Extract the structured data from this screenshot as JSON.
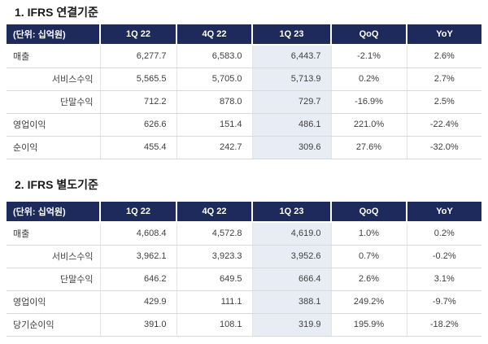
{
  "tables": [
    {
      "title": "1. IFRS 연결기준",
      "headers": [
        "(단위: 십억원)",
        "1Q 22",
        "4Q 22",
        "1Q 23",
        "QoQ",
        "YoY"
      ],
      "rows": [
        {
          "label": "매출",
          "values": [
            "6,277.7",
            "6,583.0",
            "6,443.7",
            "-2.1%",
            "2.6%"
          ]
        },
        {
          "label": "서비스수익",
          "values": [
            "5,565.5",
            "5,705.0",
            "5,713.9",
            "0.2%",
            "2.7%"
          ]
        },
        {
          "label": "단말수익",
          "values": [
            "712.2",
            "878.0",
            "729.7",
            "-16.9%",
            "2.5%"
          ]
        },
        {
          "label": "영업이익",
          "values": [
            "626.6",
            "151.4",
            "486.1",
            "221.0%",
            "-22.4%"
          ]
        },
        {
          "label": "순이익",
          "values": [
            "455.4",
            "242.7",
            "309.6",
            "27.6%",
            "-32.0%"
          ]
        }
      ]
    },
    {
      "title": "2. IFRS 별도기준",
      "headers": [
        "(단위: 십억원)",
        "1Q 22",
        "4Q 22",
        "1Q 23",
        "QoQ",
        "YoY"
      ],
      "rows": [
        {
          "label": "매출",
          "values": [
            "4,608.4",
            "4,572.8",
            "4,619.0",
            "1.0%",
            "0.2%"
          ]
        },
        {
          "label": "서비스수익",
          "values": [
            "3,962.1",
            "3,923.3",
            "3,952.6",
            "0.7%",
            "-0.2%"
          ]
        },
        {
          "label": "단말수익",
          "values": [
            "646.2",
            "649.5",
            "666.4",
            "2.6%",
            "3.1%"
          ]
        },
        {
          "label": "영업이익",
          "values": [
            "429.9",
            "111.1",
            "388.1",
            "249.2%",
            "-9.7%"
          ]
        },
        {
          "label": "당기순이익",
          "values": [
            "391.0",
            "108.1",
            "319.9",
            "195.9%",
            "-18.2%"
          ]
        }
      ]
    }
  ],
  "colors": {
    "header_bg": "#1f2a5c",
    "highlight_column_bg": "#e8ecf5"
  }
}
